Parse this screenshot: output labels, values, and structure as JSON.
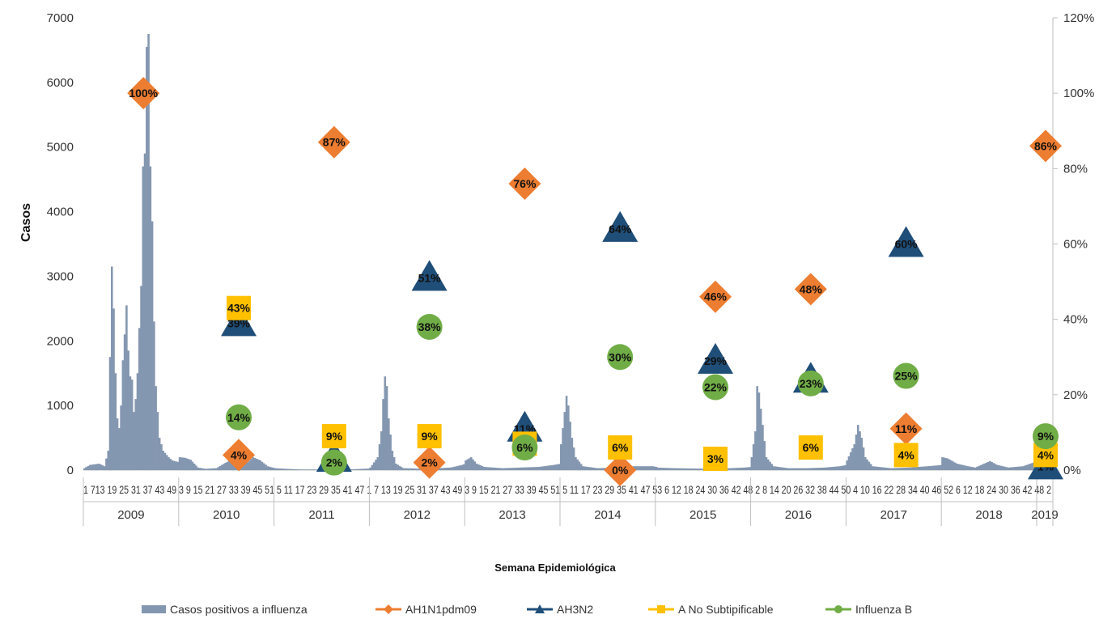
{
  "chart_data": {
    "type": "bar",
    "ylabel": "Casos",
    "xlabel": "Semana Epidemiológica",
    "ylim": [
      0,
      7000
    ],
    "y_ticks": [
      "0",
      "1000",
      "2000",
      "3000",
      "4000",
      "5000",
      "6000",
      "7000"
    ],
    "y2lim": [
      0,
      1.2
    ],
    "y2_ticks": [
      "0%",
      "20%",
      "40%",
      "60%",
      "80%",
      "100%",
      "120%"
    ],
    "grid": false,
    "legend_position": "bottom",
    "years": [
      "2009",
      "2010",
      "2011",
      "2012",
      "2013",
      "2014",
      "2015",
      "2016",
      "2017",
      "2018",
      "2019"
    ],
    "week_axis_text": "1 713 19 25 31 37 43 49 3 9 15 21 27 33 39 45 51 5 11 17 23 29 35 41 47 1 7 13 19 25 31 37 43 49 3 9 15 21 27 33 39 45 51 5 11 17 23 29 35 41 47 53 6 12 18 24 30 36 42 48 2 8 14 20 26 32 38 44 50 4 10 16 22 28 34 40 46 52 6 12 18 24 30 36 42 48 2",
    "bar_series": {
      "name": "Casos positivos a influenza",
      "color": "#8497b0",
      "peaks": [
        {
          "year": "2009",
          "profile": [
            [
              0,
              30
            ],
            [
              3,
              80
            ],
            [
              8,
              100
            ],
            [
              11,
              60
            ],
            [
              13,
              300
            ],
            [
              14,
              1750
            ],
            [
              15,
              3150
            ],
            [
              16,
              2500
            ],
            [
              17,
              1500
            ],
            [
              18,
              800
            ],
            [
              19,
              650
            ],
            [
              20,
              1000
            ],
            [
              21,
              1700
            ],
            [
              22,
              2100
            ],
            [
              23,
              2550
            ],
            [
              24,
              1850
            ],
            [
              25,
              1450
            ],
            [
              26,
              1400
            ],
            [
              27,
              900
            ],
            [
              28,
              1100
            ],
            [
              29,
              1500
            ],
            [
              30,
              2200
            ],
            [
              31,
              2850
            ],
            [
              32,
              4700
            ],
            [
              33,
              4900
            ],
            [
              34,
              6550
            ],
            [
              35,
              6750
            ],
            [
              36,
              4700
            ],
            [
              37,
              3850
            ],
            [
              38,
              2300
            ],
            [
              39,
              1300
            ],
            [
              40,
              900
            ],
            [
              41,
              500
            ],
            [
              43,
              300
            ],
            [
              46,
              200
            ],
            [
              48,
              150
            ],
            [
              52,
              120
            ]
          ]
        },
        {
          "year": "2010",
          "profile": [
            [
              0,
              200
            ],
            [
              3,
              190
            ],
            [
              6,
              160
            ],
            [
              10,
              40
            ],
            [
              14,
              20
            ],
            [
              20,
              30
            ],
            [
              26,
              130
            ],
            [
              28,
              300
            ],
            [
              30,
              180
            ],
            [
              33,
              140
            ],
            [
              37,
              120
            ],
            [
              40,
              200
            ],
            [
              44,
              150
            ],
            [
              48,
              60
            ],
            [
              52,
              30
            ]
          ]
        },
        {
          "year": "2011",
          "profile": [
            [
              0,
              30
            ],
            [
              6,
              20
            ],
            [
              14,
              10
            ],
            [
              26,
              10
            ],
            [
              38,
              10
            ],
            [
              44,
              15
            ],
            [
              52,
              25
            ]
          ]
        },
        {
          "year": "2012",
          "profile": [
            [
              0,
              40
            ],
            [
              4,
              200
            ],
            [
              6,
              600
            ],
            [
              7,
              1100
            ],
            [
              8,
              1450
            ],
            [
              9,
              1300
            ],
            [
              10,
              800
            ],
            [
              12,
              300
            ],
            [
              14,
              100
            ],
            [
              18,
              30
            ],
            [
              30,
              20
            ],
            [
              44,
              40
            ],
            [
              50,
              80
            ],
            [
              52,
              100
            ]
          ]
        },
        {
          "year": "2013",
          "profile": [
            [
              0,
              150
            ],
            [
              3,
              200
            ],
            [
              6,
              100
            ],
            [
              10,
              50
            ],
            [
              20,
              30
            ],
            [
              30,
              40
            ],
            [
              40,
              50
            ],
            [
              48,
              80
            ],
            [
              52,
              100
            ]
          ]
        },
        {
          "year": "2014",
          "profile": [
            [
              0,
              400
            ],
            [
              2,
              900
            ],
            [
              3,
              1150
            ],
            [
              4,
              1000
            ],
            [
              6,
              500
            ],
            [
              8,
              200
            ],
            [
              12,
              60
            ],
            [
              20,
              30
            ],
            [
              30,
              40
            ],
            [
              40,
              60
            ],
            [
              50,
              60
            ],
            [
              52,
              50
            ]
          ]
        },
        {
          "year": "2015",
          "profile": [
            [
              0,
              40
            ],
            [
              10,
              30
            ],
            [
              20,
              25
            ],
            [
              30,
              20
            ],
            [
              40,
              30
            ],
            [
              48,
              40
            ],
            [
              52,
              50
            ]
          ]
        },
        {
          "year": "2016",
          "profile": [
            [
              0,
              200
            ],
            [
              2,
              600
            ],
            [
              3,
              1300
            ],
            [
              4,
              1200
            ],
            [
              6,
              700
            ],
            [
              8,
              200
            ],
            [
              12,
              60
            ],
            [
              20,
              30
            ],
            [
              30,
              30
            ],
            [
              40,
              40
            ],
            [
              48,
              60
            ],
            [
              52,
              80
            ]
          ]
        },
        {
          "year": "2017",
          "profile": [
            [
              0,
              150
            ],
            [
              4,
              400
            ],
            [
              6,
              700
            ],
            [
              8,
              500
            ],
            [
              10,
              200
            ],
            [
              14,
              60
            ],
            [
              24,
              30
            ],
            [
              34,
              40
            ],
            [
              44,
              60
            ],
            [
              52,
              80
            ]
          ]
        },
        {
          "year": "2018",
          "profile": [
            [
              0,
              200
            ],
            [
              3,
              180
            ],
            [
              8,
              100
            ],
            [
              14,
              60
            ],
            [
              18,
              40
            ],
            [
              26,
              140
            ],
            [
              30,
              80
            ],
            [
              36,
              40
            ],
            [
              44,
              60
            ],
            [
              50,
              120
            ],
            [
              52,
              150
            ]
          ]
        },
        {
          "year": "2019",
          "profile": [
            [
              0,
              150
            ],
            [
              2,
              100
            ],
            [
              4,
              60
            ]
          ]
        }
      ]
    },
    "series": [
      {
        "name": "AH1N1pdm09",
        "marker": "diamond",
        "color": "#ed7d31",
        "points": [
          {
            "season": "2009",
            "value": 1.0,
            "label": "100%"
          },
          {
            "season": "2010",
            "value": 0.04,
            "label": "4%"
          },
          {
            "season": "2011",
            "value": 0.87,
            "label": "87%"
          },
          {
            "season": "2012",
            "value": 0.02,
            "label": "2%"
          },
          {
            "season": "2013",
            "value": 0.76,
            "label": "76%"
          },
          {
            "season": "2014",
            "value": 0.0,
            "label": "0%"
          },
          {
            "season": "2015",
            "value": 0.46,
            "label": "46%"
          },
          {
            "season": "2016",
            "value": 0.48,
            "label": "48%"
          },
          {
            "season": "2017",
            "value": 0.11,
            "label": "11%"
          },
          {
            "season": "2018",
            "value": 0.86,
            "label": "86%"
          }
        ]
      },
      {
        "name": "AH3N2",
        "marker": "triangle",
        "color": "#1f4e79",
        "points": [
          {
            "season": "2010",
            "value": 0.39,
            "label": "39%"
          },
          {
            "season": "2011",
            "value": 0.03,
            "label": "3%"
          },
          {
            "season": "2012",
            "value": 0.51,
            "label": "51%"
          },
          {
            "season": "2013",
            "value": 0.11,
            "label": "11%"
          },
          {
            "season": "2014",
            "value": 0.64,
            "label": "64%"
          },
          {
            "season": "2015",
            "value": 0.29,
            "label": "29%"
          },
          {
            "season": "2016",
            "value": 0.24,
            "label": "24%"
          },
          {
            "season": "2017",
            "value": 0.6,
            "label": "60%"
          },
          {
            "season": "2018",
            "value": 0.01,
            "label": "1%"
          }
        ]
      },
      {
        "name": "A No Subtipificable",
        "marker": "square",
        "color": "#ffc000",
        "points": [
          {
            "season": "2010",
            "value": 0.43,
            "label": "43%"
          },
          {
            "season": "2011",
            "value": 0.09,
            "label": "9%"
          },
          {
            "season": "2012",
            "value": 0.09,
            "label": "9%"
          },
          {
            "season": "2013",
            "value": 0.07,
            "label": "7%"
          },
          {
            "season": "2014",
            "value": 0.06,
            "label": "6%"
          },
          {
            "season": "2015",
            "value": 0.03,
            "label": "3%"
          },
          {
            "season": "2016",
            "value": 0.06,
            "label": "6%"
          },
          {
            "season": "2017",
            "value": 0.04,
            "label": "4%"
          },
          {
            "season": "2018",
            "value": 0.04,
            "label": "4%"
          }
        ]
      },
      {
        "name": "Influenza B",
        "marker": "circle",
        "color": "#70ad47",
        "points": [
          {
            "season": "2010",
            "value": 0.14,
            "label": "14%"
          },
          {
            "season": "2011",
            "value": 0.02,
            "label": "2%"
          },
          {
            "season": "2012",
            "value": 0.38,
            "label": "38%"
          },
          {
            "season": "2013",
            "value": 0.06,
            "label": "6%"
          },
          {
            "season": "2014",
            "value": 0.3,
            "label": "30%"
          },
          {
            "season": "2015",
            "value": 0.22,
            "label": "22%"
          },
          {
            "season": "2016",
            "value": 0.23,
            "label": "23%"
          },
          {
            "season": "2017",
            "value": 0.25,
            "label": "25%"
          },
          {
            "season": "2018",
            "value": 0.09,
            "label": "9%"
          }
        ]
      }
    ]
  }
}
